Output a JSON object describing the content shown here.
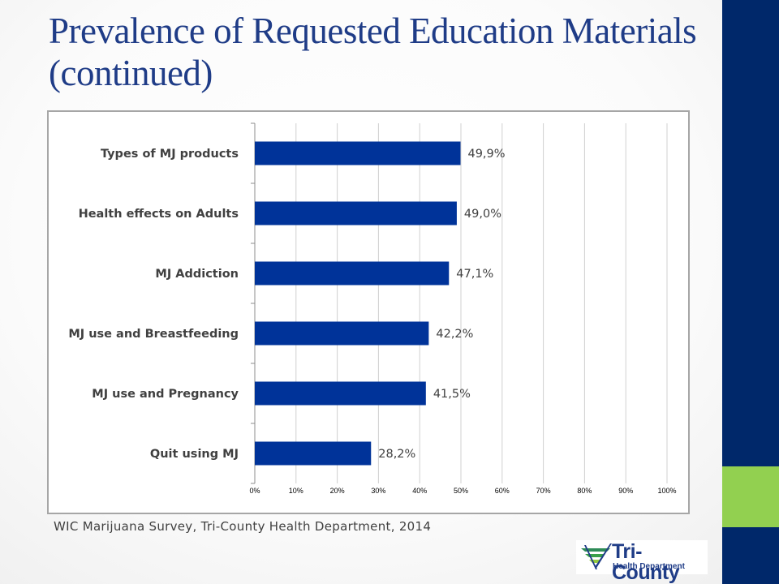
{
  "slide": {
    "title": "Prevalence of Requested Education Materials (continued)",
    "source": "WIC Marijuana Survey, Tri-County Health Department, 2014"
  },
  "logo": {
    "name": "Tri-County",
    "subtitle": "Health Department"
  },
  "colors": {
    "bar": "#003399",
    "title": "#1f3c87",
    "band": "#00286a",
    "accent": "#92d050"
  },
  "chart_data": {
    "type": "bar",
    "orientation": "horizontal",
    "categories": [
      "Types of MJ products",
      "Health effects on Adults",
      "MJ Addiction",
      "MJ use and Breastfeeding",
      "MJ use and Pregnancy",
      "Quit using MJ"
    ],
    "values": [
      49.9,
      49.0,
      47.1,
      42.2,
      41.5,
      28.2
    ],
    "data_labels": [
      "49,9%",
      "49,0%",
      "47,1%",
      "42,2%",
      "41,5%",
      "28,2%"
    ],
    "xlim": [
      0,
      100
    ],
    "xticks": [
      "0%",
      "10%",
      "20%",
      "30%",
      "40%",
      "50%",
      "60%",
      "70%",
      "80%",
      "90%",
      "100%"
    ],
    "grid": "vertical",
    "legend": "none"
  }
}
